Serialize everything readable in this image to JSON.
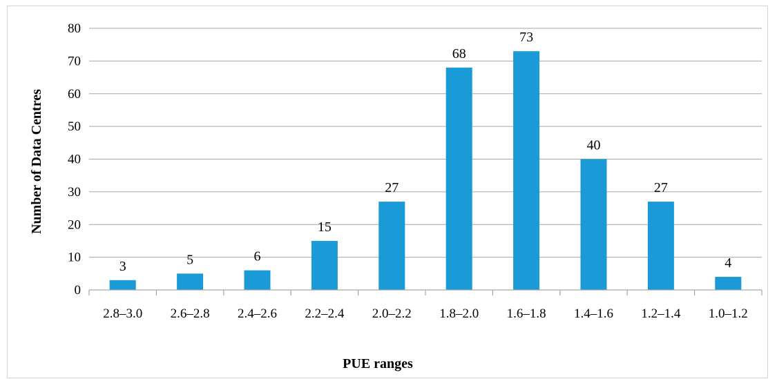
{
  "chart_data": {
    "type": "bar",
    "title": "",
    "xlabel": "PUE ranges",
    "ylabel": "Number of Data Centres",
    "categories": [
      "2.8–3.0",
      "2.6–2.8",
      "2.4–2.6",
      "2.2–2.4",
      "2.0–2.2",
      "1.8–2.0",
      "1.6–1.8",
      "1.4–1.6",
      "1.2–1.4",
      "1.0–1.2"
    ],
    "values": [
      3,
      5,
      6,
      15,
      27,
      68,
      73,
      40,
      27,
      4
    ],
    "ylim": [
      0,
      80
    ],
    "yticks": [
      0,
      10,
      20,
      30,
      40,
      50,
      60,
      70,
      80
    ],
    "grid": true,
    "legend": "none",
    "data_labels": true,
    "colors": {
      "bar": "#1b9ad8",
      "grid": "#a6a6a6",
      "axis": "#a6a6a6"
    }
  }
}
